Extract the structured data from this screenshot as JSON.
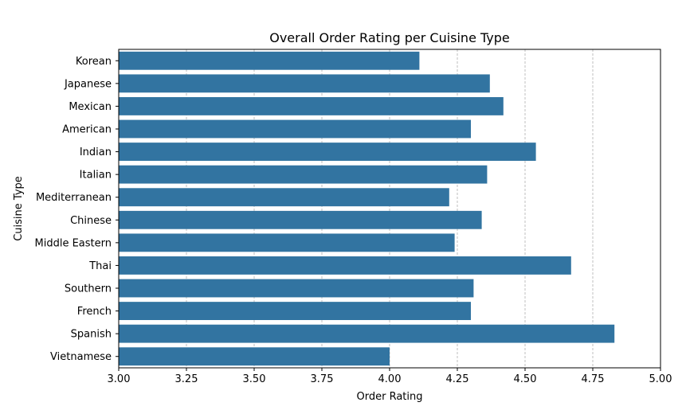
{
  "chart_data": {
    "type": "bar",
    "orientation": "horizontal",
    "title": "Overall Order Rating per Cuisine Type",
    "xlabel": "Order Rating",
    "ylabel": "Cuisine Type",
    "xlim": [
      3.0,
      5.0
    ],
    "x_ticks": [
      "3.00",
      "3.25",
      "3.50",
      "3.75",
      "4.00",
      "4.25",
      "4.50",
      "4.75",
      "5.00"
    ],
    "grid": "vertical dashed",
    "bar_color": "#3274a1",
    "categories": [
      "Korean",
      "Japanese",
      "Mexican",
      "American",
      "Indian",
      "Italian",
      "Mediterranean",
      "Chinese",
      "Middle Eastern",
      "Thai",
      "Southern",
      "French",
      "Spanish",
      "Vietnamese"
    ],
    "values": [
      4.11,
      4.37,
      4.42,
      4.3,
      4.54,
      4.36,
      4.22,
      4.34,
      4.24,
      4.67,
      4.31,
      4.3,
      4.83,
      4.0
    ]
  }
}
